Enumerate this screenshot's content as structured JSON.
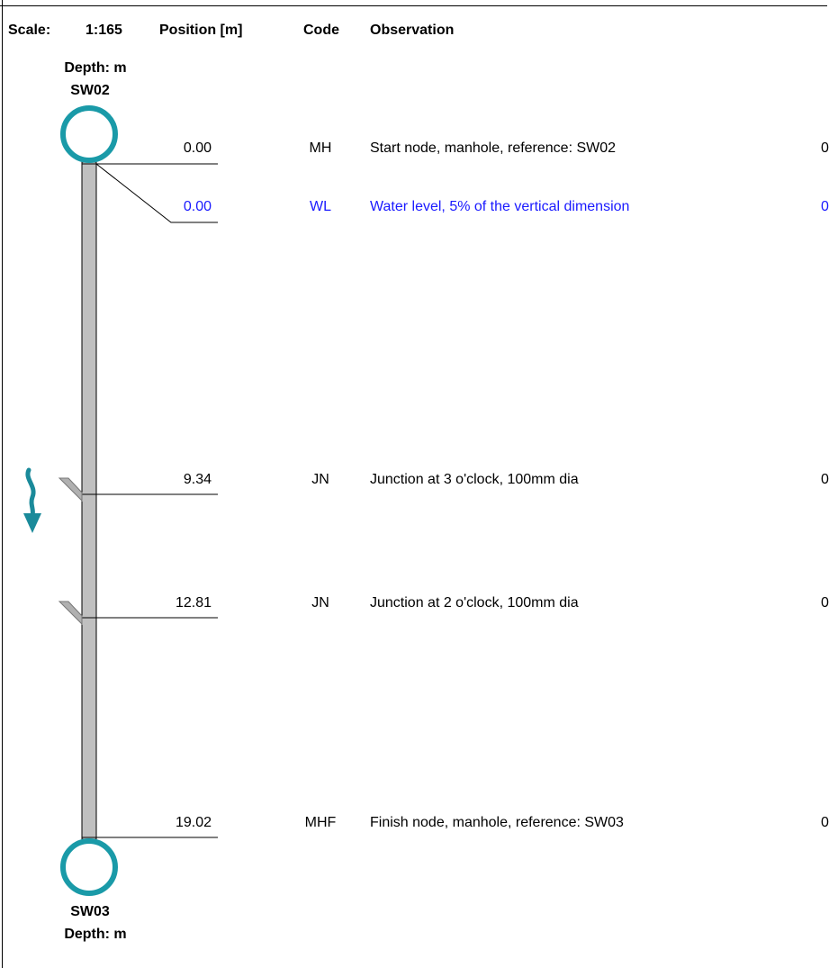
{
  "header": {
    "scale_label": "Scale:",
    "scale_value": "1:165",
    "position_label": "Position [m]",
    "code_label": "Code",
    "observation_label": "Observation"
  },
  "start_node": {
    "depth_label": "Depth: m",
    "name": "SW02"
  },
  "finish_node": {
    "name": "SW03",
    "depth_label": "Depth: m"
  },
  "observations": [
    {
      "position": "0.00",
      "code": "MH",
      "observation": "Start node, manhole, reference: SW02",
      "trailing": "0"
    },
    {
      "position": "0.00",
      "code": "WL",
      "observation": "Water level, 5% of the vertical dimension",
      "trailing": "0"
    },
    {
      "position": "9.34",
      "code": "JN",
      "observation": "Junction at 3 o'clock, 100mm dia",
      "trailing": "0"
    },
    {
      "position": "12.81",
      "code": "JN",
      "observation": "Junction at 2 o'clock, 100mm dia",
      "trailing": "0"
    },
    {
      "position": "19.02",
      "code": "MHF",
      "observation": "Finish node, manhole, reference: SW03",
      "trailing": "0"
    }
  ],
  "colors": {
    "manhole": "#1a9aa8",
    "pipe_fill": "#c0c0c0",
    "water_level_text": "#1a1aff",
    "flow_arrow": "#1a8a9a"
  }
}
